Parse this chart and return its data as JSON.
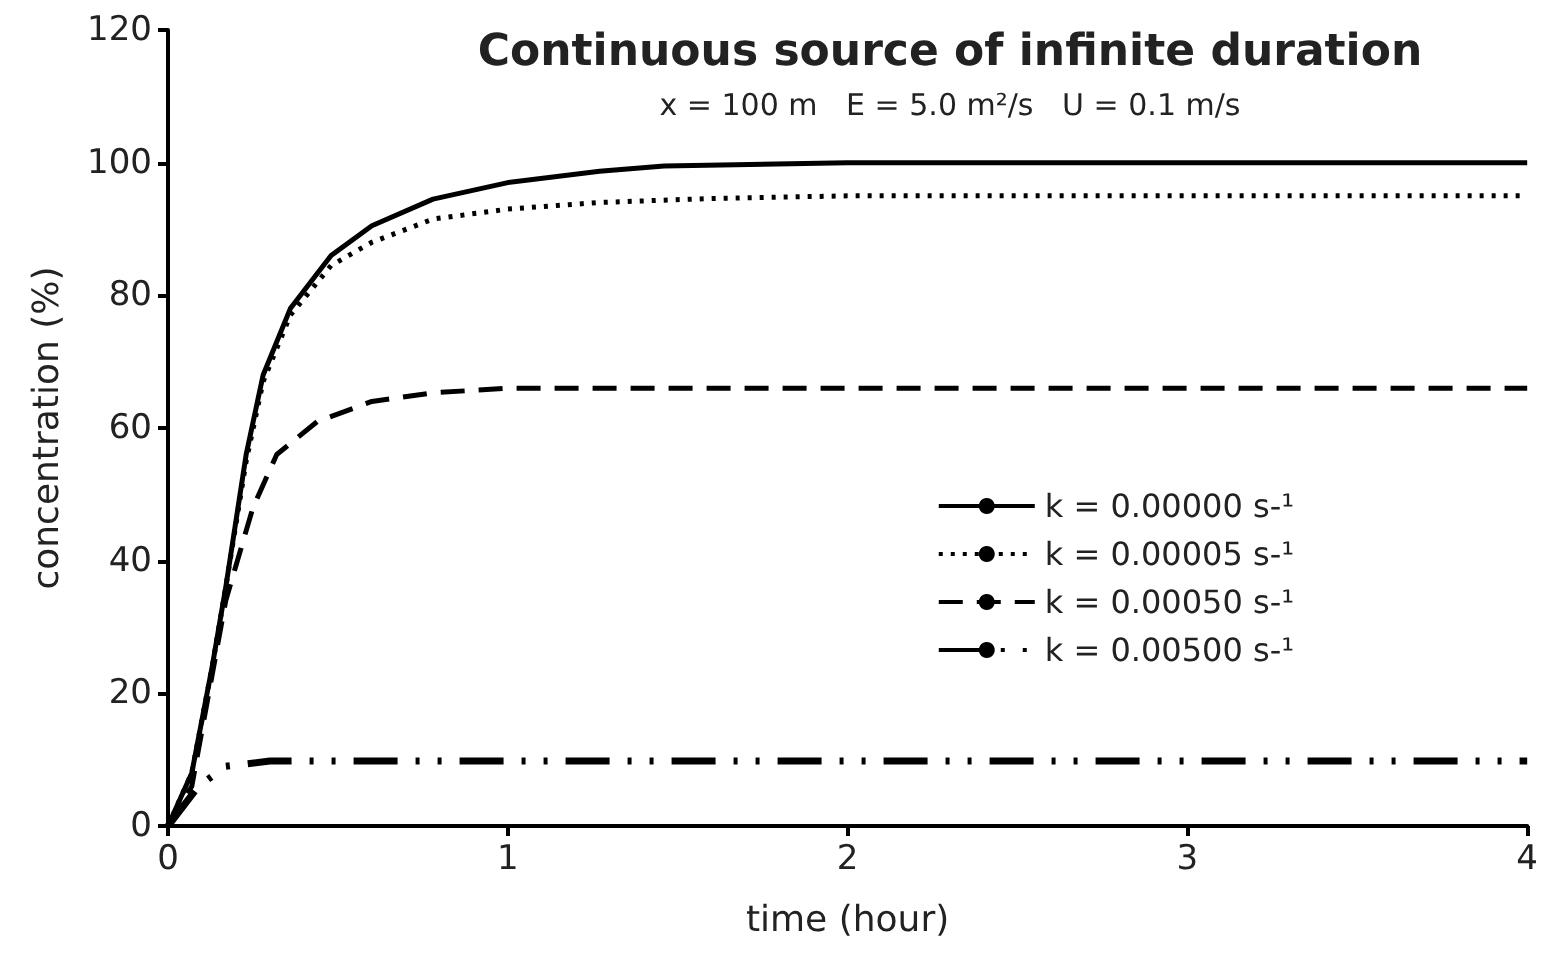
{
  "chart_data": {
    "type": "line",
    "title": "Continuous source of infinite duration",
    "subtitle": "x = 100 m   E = 5.0 m²/s   U = 0.1 m/s",
    "xlabel": "time (hour)",
    "ylabel": "concentration (%)",
    "xlim": [
      0,
      4
    ],
    "xticks": [
      0,
      1,
      2,
      3,
      4
    ],
    "ylim": [
      0,
      120
    ],
    "yticks": [
      0,
      20,
      40,
      60,
      80,
      100,
      120
    ],
    "grid": false,
    "legend": "right",
    "marker": "none",
    "series": [
      {
        "name": "k = 0.00000 s-¹",
        "color": "#000000",
        "line_style": "solid",
        "x": [
          0,
          0.07,
          0.13,
          0.17,
          0.23,
          0.28,
          0.36,
          0.48,
          0.6,
          0.78,
          1,
          1.27,
          1.46,
          2,
          3,
          4
        ],
        "values": [
          0,
          8,
          24,
          36,
          56,
          68,
          78,
          86,
          90.5,
          94.5,
          97,
          98.7,
          99.5,
          100,
          100,
          100
        ]
      },
      {
        "name": "k = 0.00005 s-¹",
        "color": "#000000",
        "line_style": "dotted",
        "x": [
          0,
          0.07,
          0.13,
          0.17,
          0.23,
          0.28,
          0.36,
          0.48,
          0.6,
          0.78,
          1,
          1.27,
          1.6,
          2,
          3,
          4
        ],
        "values": [
          0,
          8,
          24,
          36,
          55,
          67,
          77,
          84.5,
          88,
          91.5,
          93,
          94,
          94.6,
          95,
          95,
          95
        ]
      },
      {
        "name": "k = 0.00050 s-¹",
        "color": "#000000",
        "line_style": "dashed",
        "x": [
          0,
          0.07,
          0.17,
          0.25,
          0.32,
          0.44,
          0.6,
          0.78,
          1,
          2,
          3,
          4
        ],
        "values": [
          0,
          6,
          34,
          48,
          56,
          61,
          64,
          65.3,
          66,
          66,
          66,
          66
        ]
      },
      {
        "name": "k = 0.00500 s-¹",
        "color": "#000000",
        "line_style": "dashdot",
        "x": [
          0,
          0.09,
          0.17,
          0.3,
          1,
          2,
          3,
          4
        ],
        "values": [
          0,
          6,
          9,
          9.8,
          9.8,
          9.8,
          9.8,
          9.8
        ]
      }
    ]
  }
}
